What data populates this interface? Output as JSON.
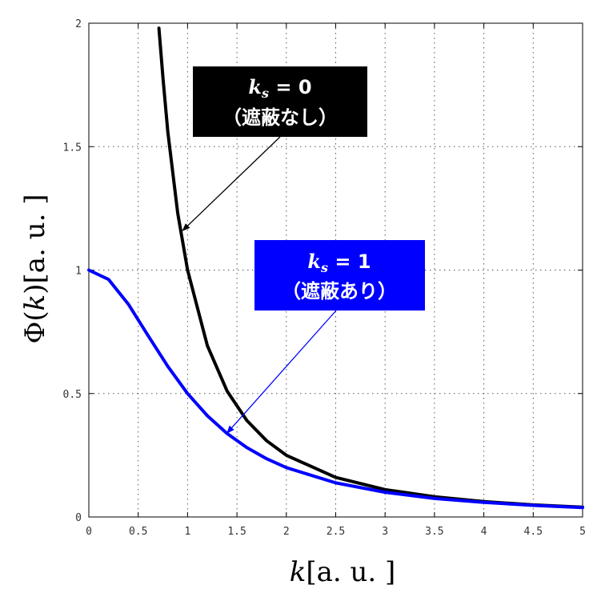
{
  "chart_data": {
    "type": "line",
    "xlabel": {
      "var": "k",
      "unit": "[a. u. ]"
    },
    "ylabel": {
      "prefix": "Φ(",
      "var": "k",
      "suffix": ")[a. u. ]"
    },
    "xlim": [
      0,
      5
    ],
    "ylim": [
      0,
      2
    ],
    "xticks": [
      "0",
      "0.5",
      "1",
      "1.5",
      "2",
      "2.5",
      "3",
      "3.5",
      "4",
      "4.5",
      "5"
    ],
    "yticks": [
      "0",
      "0.5",
      "1",
      "1.5",
      "2"
    ],
    "grid": true,
    "series": [
      {
        "ks": 0,
        "color": "#000000",
        "x": [
          0.71,
          0.75,
          0.8,
          0.9,
          1.0,
          1.2,
          1.4,
          1.6,
          1.8,
          2.0,
          2.5,
          3.0,
          3.5,
          4.0,
          4.5,
          5.0
        ],
        "values": [
          1.98,
          1.78,
          1.56,
          1.23,
          1.0,
          0.694,
          0.51,
          0.391,
          0.309,
          0.25,
          0.16,
          0.111,
          0.082,
          0.0625,
          0.049,
          0.04
        ]
      },
      {
        "ks": 1,
        "color": "#0000ff",
        "x": [
          0.0,
          0.2,
          0.4,
          0.6,
          0.8,
          1.0,
          1.2,
          1.4,
          1.6,
          1.8,
          2.0,
          2.5,
          3.0,
          3.5,
          4.0,
          4.5,
          5.0
        ],
        "values": [
          1.0,
          0.962,
          0.862,
          0.735,
          0.61,
          0.5,
          0.41,
          0.338,
          0.281,
          0.236,
          0.2,
          0.138,
          0.1,
          0.075,
          0.059,
          0.047,
          0.038
        ]
      }
    ],
    "annotations": [
      {
        "var": "k",
        "sub": "s",
        "eq": " = 0",
        "line2": "（遮蔽なし）",
        "bg": "#000000",
        "arrow_to": [
          0.95,
          1.16
        ],
        "arrow_color": "#000000"
      },
      {
        "var": "k",
        "sub": "s",
        "eq": " = 1",
        "line2": "（遮蔽あり）",
        "bg": "#0000ff",
        "arrow_to": [
          1.4,
          0.34
        ],
        "arrow_color": "#0000ff"
      }
    ]
  }
}
